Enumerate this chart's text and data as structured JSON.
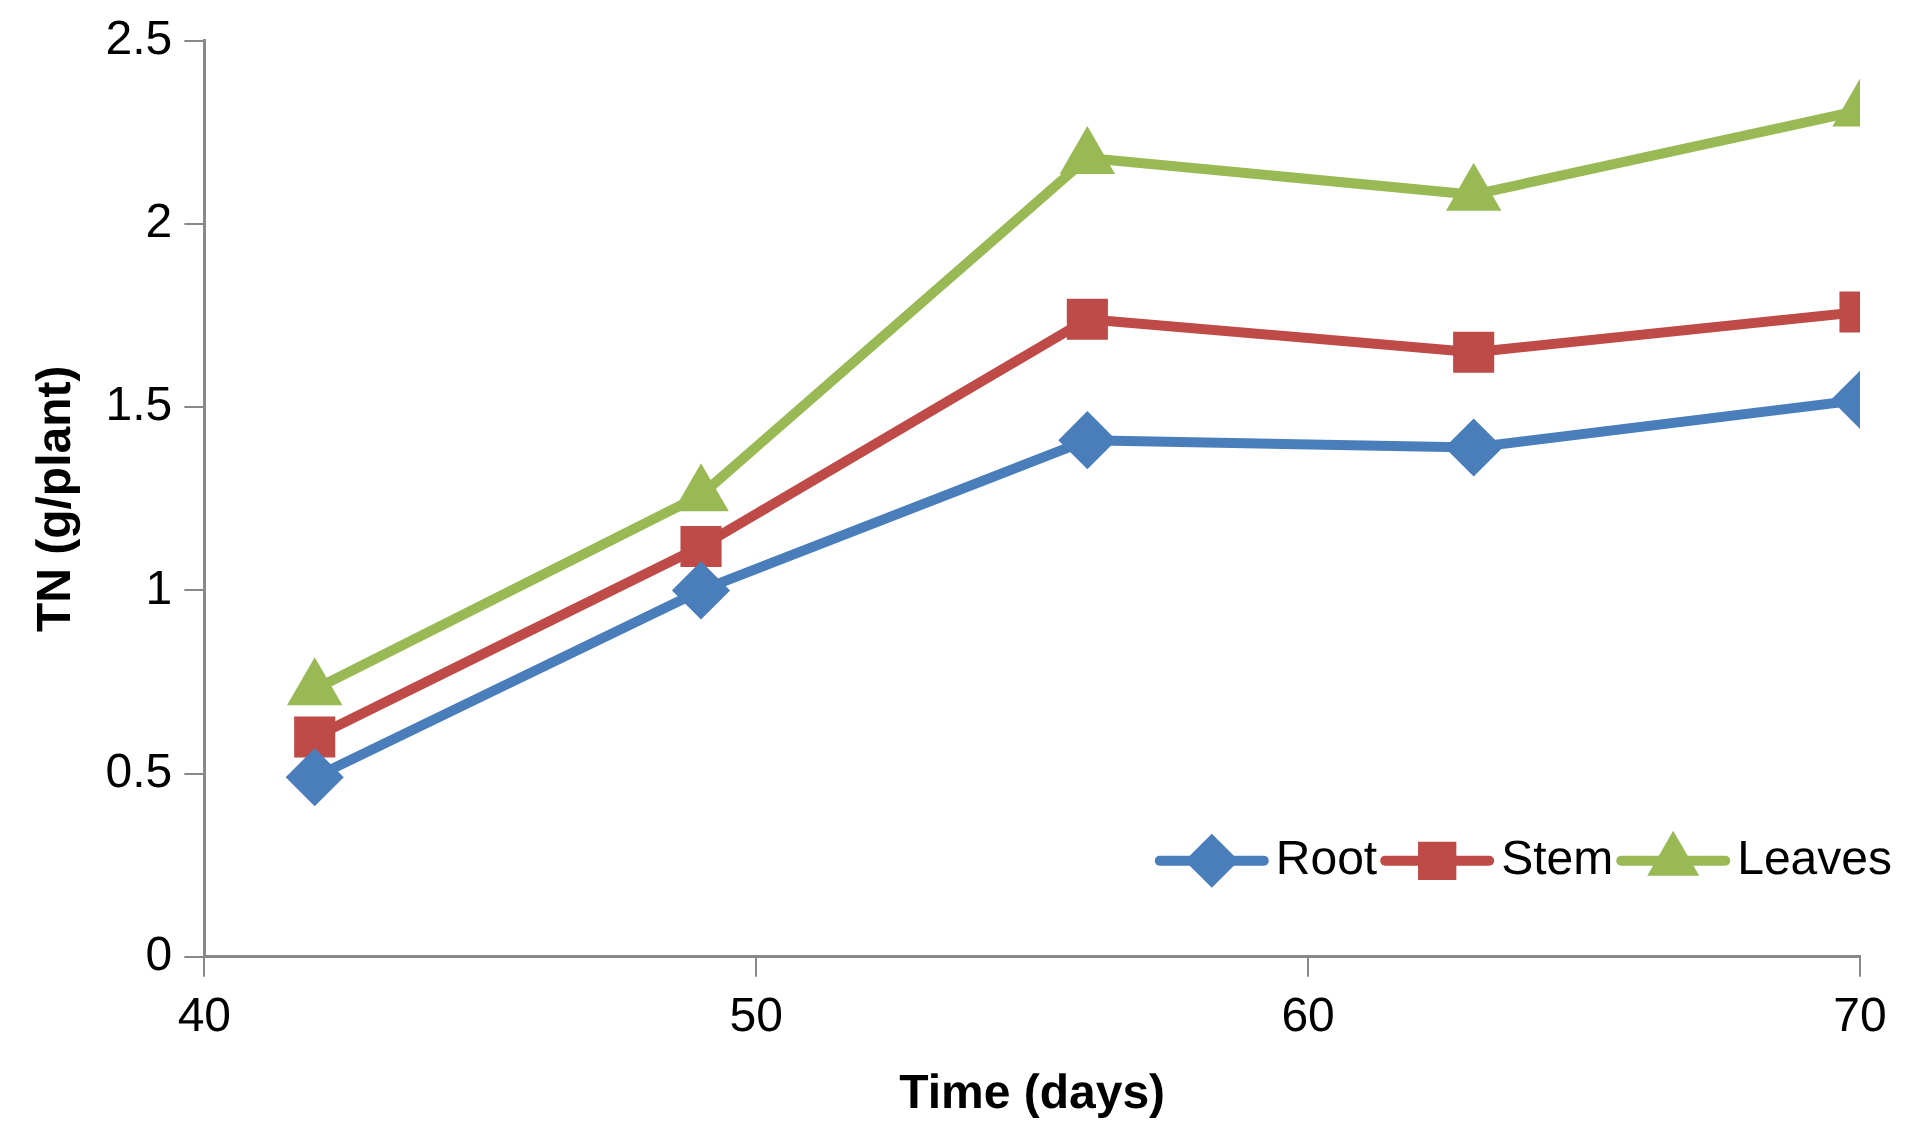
{
  "chart_data": {
    "type": "line",
    "xlabel": "Time (days)",
    "ylabel": "TN (g/plant)",
    "x": [
      42,
      49,
      56,
      63,
      70
    ],
    "series": [
      {
        "name": "Root",
        "color": "#4a7ebb",
        "marker": "diamond",
        "values": [
          0.49,
          1.0,
          1.41,
          1.39,
          1.52
        ]
      },
      {
        "name": "Stem",
        "color": "#be4b48",
        "marker": "square",
        "values": [
          0.6,
          1.12,
          1.74,
          1.65,
          1.76
        ]
      },
      {
        "name": "Leaves",
        "color": "#98b954",
        "marker": "triangle",
        "values": [
          0.73,
          1.26,
          2.18,
          2.08,
          2.31
        ]
      }
    ],
    "xlim": [
      40,
      70
    ],
    "xticks": [
      40,
      50,
      60,
      70
    ],
    "ylim": [
      0,
      2.5
    ],
    "yticks": [
      0,
      0.5,
      1,
      1.5,
      2,
      2.5
    ],
    "grid": false,
    "legend": "bottom right",
    "line_style": "solid"
  }
}
